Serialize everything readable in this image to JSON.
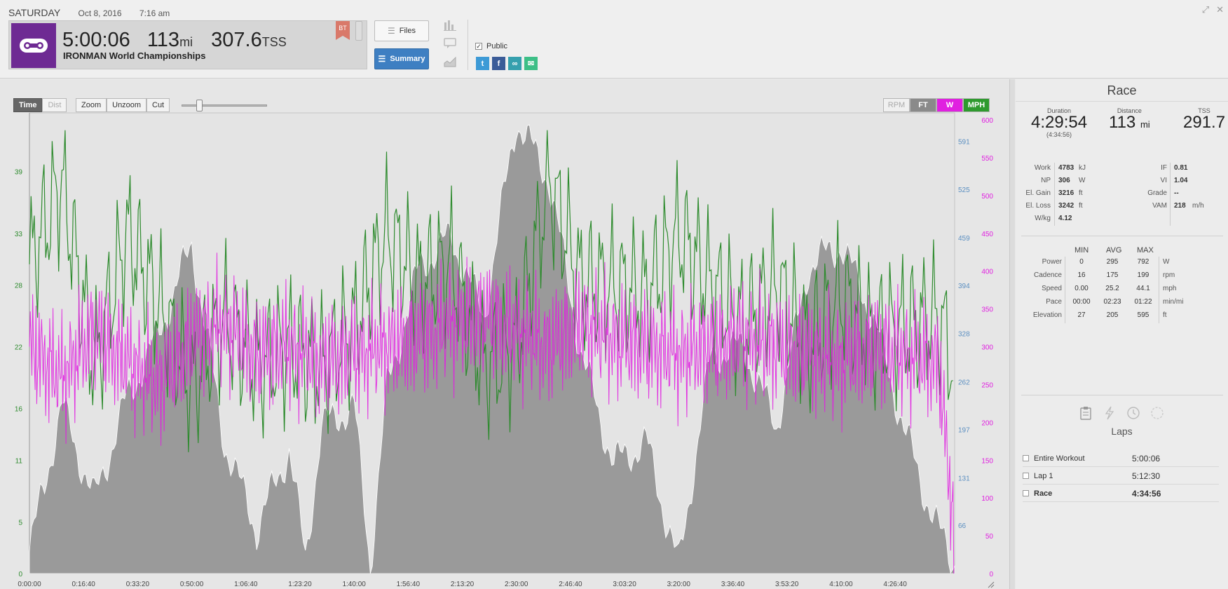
{
  "header": {
    "day": "SATURDAY",
    "date": "Oct 8, 2016",
    "time": "7:16 am",
    "duration": "5:00:06",
    "distance": "113",
    "distance_unit": "mi",
    "tss": "307.6",
    "tss_unit": "TSS",
    "workout_title": "IRONMAN World Championships",
    "badge": "BT",
    "files_label": "Files",
    "summary_label": "Summary",
    "public_label": "Public",
    "public_checked": true,
    "accent": "#6e2a93"
  },
  "toolbar": {
    "time_label": "Time",
    "dist_label": "Dist",
    "zoom_label": "Zoom",
    "unzoom_label": "Unzoom",
    "cut_label": "Cut",
    "rpm_label": "RPM",
    "ft_label": "FT",
    "w_label": "W",
    "mph_label": "MPH"
  },
  "chart_data": {
    "type": "line",
    "x_ticks": [
      "0:00:00",
      "0:16:40",
      "0:33:20",
      "0:50:00",
      "1:06:40",
      "1:23:20",
      "1:40:00",
      "1:56:40",
      "2:13:20",
      "2:30:00",
      "2:46:40",
      "3:03:20",
      "3:20:00",
      "3:36:40",
      "3:53:20",
      "4:10:00",
      "4:26:40"
    ],
    "left_axis": {
      "label": "MPH",
      "ticks": [
        "0",
        "5",
        "11",
        "16",
        "22",
        "28",
        "33",
        "39"
      ],
      "color": "#2e8b2e"
    },
    "right_axis_ft": {
      "label": "FT",
      "ticks": [
        "66",
        "131",
        "197",
        "262",
        "328",
        "394",
        "459",
        "525",
        "591"
      ],
      "color": "#5b8fc1"
    },
    "right_axis_w": {
      "label": "W",
      "ticks": [
        "0",
        "50",
        "100",
        "150",
        "200",
        "250",
        "300",
        "350",
        "400",
        "450",
        "500",
        "550",
        "600"
      ],
      "color": "#e020e0"
    },
    "series": [
      {
        "name": "Elevation (ft)",
        "type": "area",
        "color": "#9a9a9a",
        "x_min": [
          0,
          10,
          20,
          30,
          40,
          50,
          60,
          70,
          80,
          85,
          90,
          100,
          105,
          110,
          120,
          130,
          140,
          150,
          160,
          170,
          180,
          190,
          200,
          210,
          220,
          230,
          240,
          250,
          260,
          270,
          275,
          280,
          285
        ],
        "values": [
          30,
          230,
          100,
          240,
          330,
          450,
          180,
          60,
          170,
          20,
          200,
          230,
          10,
          250,
          420,
          460,
          350,
          620,
          540,
          300,
          150,
          180,
          10,
          300,
          310,
          200,
          420,
          450,
          350,
          190,
          120,
          60,
          10
        ]
      },
      {
        "name": "Speed (mph)",
        "type": "line",
        "color": "#2e8b2e",
        "x_min": [
          0,
          10,
          20,
          30,
          40,
          50,
          60,
          70,
          80,
          90,
          100,
          110,
          120,
          130,
          140,
          150,
          160,
          170,
          180,
          190,
          200,
          210,
          220,
          230,
          240,
          250,
          260,
          270,
          280,
          285
        ],
        "values": [
          30,
          38,
          20,
          33,
          26,
          18,
          25,
          20,
          22,
          20,
          24,
          33,
          28,
          30,
          20,
          22,
          38,
          28,
          28,
          27,
          33,
          28,
          24,
          28,
          22,
          27,
          23,
          24,
          25,
          20
        ]
      },
      {
        "name": "Power (W)",
        "type": "line",
        "color": "#e020e0",
        "x_min": [
          0,
          10,
          20,
          30,
          40,
          50,
          60,
          70,
          80,
          90,
          100,
          110,
          120,
          130,
          140,
          150,
          160,
          170,
          180,
          190,
          200,
          210,
          220,
          230,
          240,
          250,
          260,
          270,
          280,
          285
        ],
        "values": [
          300,
          260,
          320,
          280,
          250,
          310,
          330,
          290,
          300,
          280,
          290,
          300,
          310,
          330,
          340,
          320,
          300,
          330,
          310,
          300,
          290,
          300,
          310,
          300,
          290,
          280,
          300,
          290,
          280,
          50
        ]
      }
    ]
  },
  "panel": {
    "title": "Race",
    "duration_label": "Duration",
    "duration": "4:29:54",
    "duration_sub": "(4:34:56)",
    "distance_label": "Distance",
    "distance": "113",
    "distance_unit": "mi",
    "tss_label": "TSS",
    "tss": "291.7",
    "metrics": [
      {
        "label": "Work",
        "value": "4783",
        "unit": "kJ",
        "label2": "IF",
        "value2": "0.81",
        "unit2": ""
      },
      {
        "label": "NP",
        "value": "306",
        "unit": "W",
        "label2": "VI",
        "value2": "1.04",
        "unit2": ""
      },
      {
        "label": "El. Gain",
        "value": "3216",
        "unit": "ft",
        "label2": "Grade",
        "value2": "--",
        "unit2": ""
      },
      {
        "label": "El. Loss",
        "value": "3242",
        "unit": "ft",
        "label2": "VAM",
        "value2": "218",
        "unit2": "m/h"
      },
      {
        "label": "W/kg",
        "value": "4.12",
        "unit": "",
        "label2": "",
        "value2": "",
        "unit2": ""
      }
    ],
    "stats_headers": [
      "MIN",
      "AVG",
      "MAX"
    ],
    "stats": [
      {
        "label": "Power",
        "min": "0",
        "avg": "295",
        "max": "792",
        "unit": "W"
      },
      {
        "label": "Cadence",
        "min": "16",
        "avg": "175",
        "max": "199",
        "unit": "rpm"
      },
      {
        "label": "Speed",
        "min": "0.00",
        "avg": "25.2",
        "max": "44.1",
        "unit": "mph"
      },
      {
        "label": "Pace",
        "min": "00:00",
        "avg": "02:23",
        "max": "01:22",
        "unit": "min/mi"
      },
      {
        "label": "Elevation",
        "min": "27",
        "avg": "205",
        "max": "595",
        "unit": "ft"
      }
    ],
    "laps_title": "Laps",
    "laps": [
      {
        "name": "Entire Workout",
        "time": "5:00:06"
      },
      {
        "name": "Lap 1",
        "time": "5:12:30"
      },
      {
        "name": "Race",
        "time": "4:34:56"
      }
    ]
  }
}
